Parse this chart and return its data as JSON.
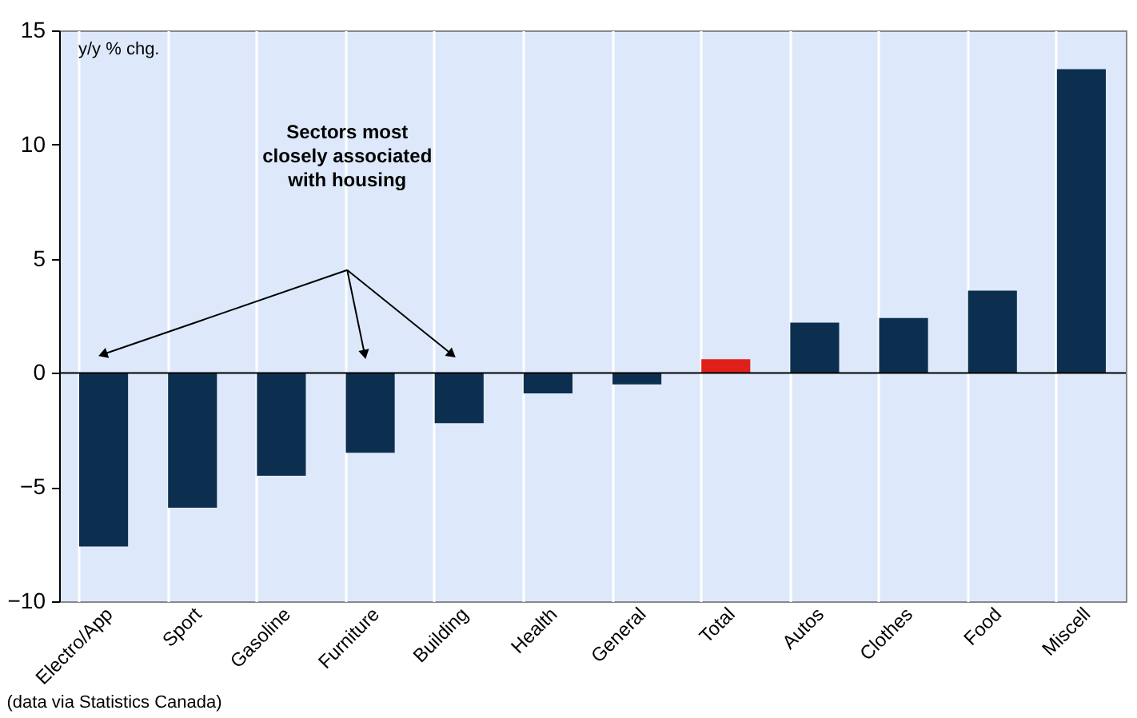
{
  "chart_data": {
    "type": "bar",
    "ylabel": "y/y % chg.",
    "categories": [
      "Electro/App",
      "Sport",
      "Gasoline",
      "Furniture",
      "Building",
      "Health",
      "General",
      "Total",
      "Autos",
      "Clothes",
      "Food",
      "Miscell"
    ],
    "values": [
      -7.6,
      -5.9,
      -4.5,
      -3.5,
      -2.2,
      -0.9,
      -0.5,
      0.6,
      2.2,
      2.4,
      3.6,
      13.3
    ],
    "colors": [
      "#0d2f4f",
      "#0d2f4f",
      "#0d2f4f",
      "#0d2f4f",
      "#0d2f4f",
      "#0d2f4f",
      "#0d2f4f",
      "#e0201b",
      "#0d2f4f",
      "#0d2f4f",
      "#0d2f4f",
      "#0d2f4f"
    ],
    "ylim": [
      -10,
      15
    ],
    "yticks": [
      -10,
      -5,
      0,
      5,
      10,
      15
    ],
    "grid": "x",
    "annotations": [
      "Sectors most closely associated with housing",
      "(data via Statistics Canada)"
    ]
  }
}
